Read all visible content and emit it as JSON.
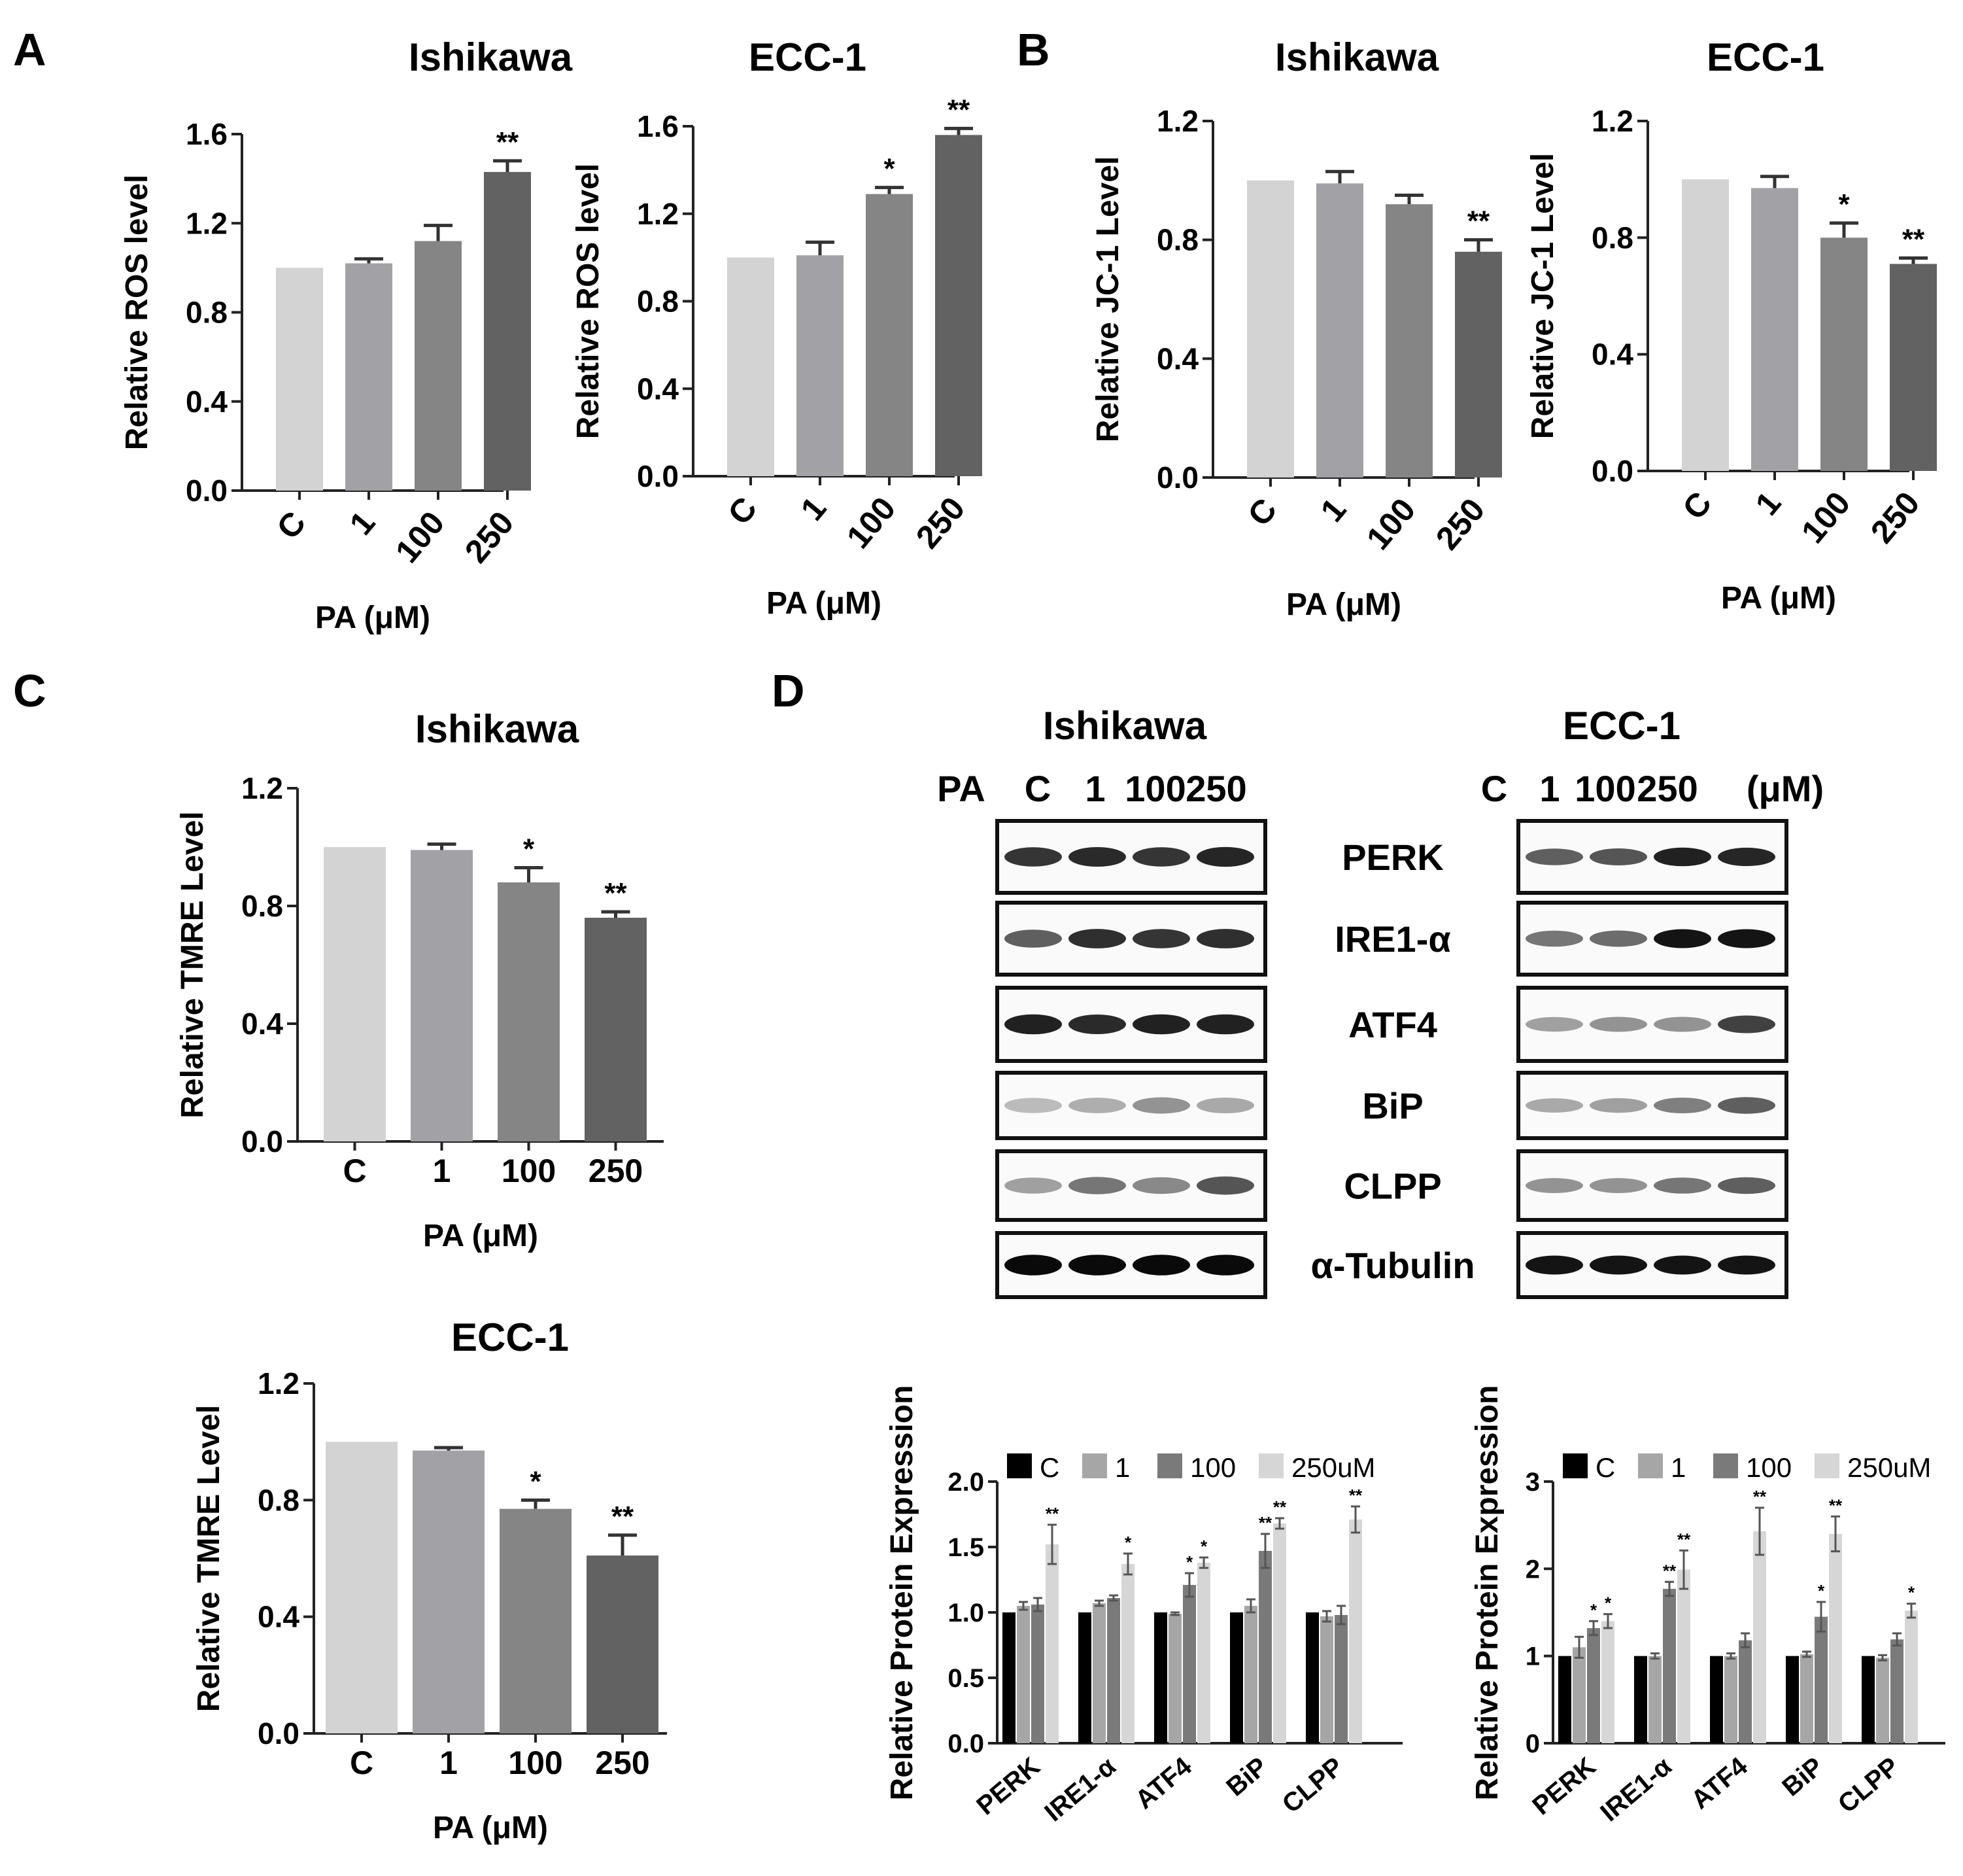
{
  "panels": {
    "A": "A",
    "B": "B",
    "C": "C",
    "D": "D"
  },
  "colors": {
    "bar": [
      "#d3d3d3",
      "#a2a2a6",
      "#858585",
      "#626262"
    ],
    "axis": "#222222",
    "grouped": [
      "#000000",
      "#a6a6a6",
      "#7a7a7a",
      "#d6d6d6"
    ]
  },
  "chart_data": [
    {
      "id": "A-ishikawa",
      "panel": "A",
      "type": "bar",
      "title": "Ishikawa",
      "categories": [
        "C",
        "1",
        "100",
        "250"
      ],
      "tick_labels": [
        "0.0",
        "0.4",
        "0.8",
        "1.2",
        "1.6"
      ],
      "values": [
        1.0,
        1.02,
        1.12,
        1.43
      ],
      "errors": [
        0.0,
        0.02,
        0.07,
        0.05
      ],
      "significance": [
        "",
        "",
        "",
        "**"
      ],
      "xlabel": "PA (μM)",
      "ylabel": "Relative ROS level",
      "ylim": [
        0,
        1.6
      ],
      "yticks": [
        0,
        0.4,
        0.8,
        1.2,
        1.6
      ]
    },
    {
      "id": "A-ecc1",
      "panel": "A",
      "type": "bar",
      "title": "ECC-1",
      "categories": [
        "C",
        "1",
        "100",
        "250"
      ],
      "tick_labels": [
        "0.0",
        "0.4",
        "0.8",
        "1.2",
        "1.6"
      ],
      "values": [
        1.0,
        1.01,
        1.29,
        1.56
      ],
      "errors": [
        0.0,
        0.06,
        0.03,
        0.03
      ],
      "significance": [
        "",
        "",
        "*",
        "**"
      ],
      "xlabel": "PA (μM)",
      "ylabel": "Relative ROS level",
      "ylim": [
        0,
        1.6
      ],
      "yticks": [
        0,
        0.4,
        0.8,
        1.2,
        1.6
      ]
    },
    {
      "id": "B-ishikawa",
      "panel": "B",
      "type": "bar",
      "title": "Ishikawa",
      "categories": [
        "C",
        "1",
        "100",
        "250"
      ],
      "tick_labels": [
        "0.0",
        "0.4",
        "0.8",
        "1.2"
      ],
      "values": [
        1.0,
        0.99,
        0.92,
        0.76
      ],
      "errors": [
        0.0,
        0.04,
        0.03,
        0.04
      ],
      "significance": [
        "",
        "",
        "",
        "**"
      ],
      "xlabel": "PA (μM)",
      "ylabel": "Relative JC-1 Level",
      "ylim": [
        0,
        1.2
      ],
      "yticks": [
        0,
        0.4,
        0.8,
        1.2
      ]
    },
    {
      "id": "B-ecc1",
      "panel": "B",
      "type": "bar",
      "title": "ECC-1",
      "categories": [
        "C",
        "1",
        "100",
        "250"
      ],
      "tick_labels": [
        "0.0",
        "0.4",
        "0.8",
        "1.2"
      ],
      "values": [
        1.0,
        0.97,
        0.8,
        0.71
      ],
      "errors": [
        0.0,
        0.04,
        0.05,
        0.02
      ],
      "significance": [
        "",
        "",
        "*",
        "**"
      ],
      "xlabel": "PA (μM)",
      "ylabel": "Relative JC-1 Level",
      "ylim": [
        0,
        1.2
      ],
      "yticks": [
        0,
        0.4,
        0.8,
        1.2
      ]
    },
    {
      "id": "C-ishikawa",
      "panel": "C",
      "type": "bar",
      "title": "Ishikawa",
      "categories": [
        "C",
        "1",
        "100",
        "250"
      ],
      "tick_labels": [
        "0.0",
        "0.4",
        "0.8",
        "1.2"
      ],
      "values": [
        1.0,
        0.99,
        0.88,
        0.76
      ],
      "errors": [
        0.0,
        0.02,
        0.05,
        0.02
      ],
      "significance": [
        "",
        "",
        "*",
        "**"
      ],
      "xlabel": "PA (μM)",
      "ylabel": "Relative TMRE Level",
      "ylim": [
        0,
        1.2
      ],
      "yticks": [
        0,
        0.4,
        0.8,
        1.2
      ]
    },
    {
      "id": "C-ecc1",
      "panel": "C",
      "type": "bar",
      "title": "ECC-1",
      "categories": [
        "C",
        "1",
        "100",
        "250"
      ],
      "tick_labels": [
        "0.0",
        "0.4",
        "0.8",
        "1.2"
      ],
      "values": [
        1.0,
        0.97,
        0.77,
        0.61
      ],
      "errors": [
        0.0,
        0.01,
        0.03,
        0.07
      ],
      "significance": [
        "",
        "",
        "*",
        "**"
      ],
      "xlabel": "PA (μM)",
      "ylabel": "Relative TMRE Level",
      "ylim": [
        0,
        1.2
      ],
      "yticks": [
        0,
        0.4,
        0.8,
        1.2
      ]
    },
    {
      "id": "D-ishikawa-quant",
      "panel": "D",
      "type": "bar",
      "categories": [
        "PERK",
        "IRE1-α",
        "ATF4",
        "BiP",
        "CLPP"
      ],
      "tick_labels": [
        "0.0",
        "0.5",
        "1.0",
        "1.5",
        "2.0"
      ],
      "series": [
        {
          "name": "C",
          "values": [
            1.0,
            1.0,
            1.0,
            1.0,
            1.0
          ],
          "errors": [
            0,
            0,
            0,
            0,
            0
          ],
          "significance": [
            "",
            "",
            "",
            "",
            ""
          ]
        },
        {
          "name": "1",
          "values": [
            1.05,
            1.07,
            0.99,
            1.05,
            0.97
          ],
          "errors": [
            0.03,
            0.02,
            0.01,
            0.05,
            0.04
          ],
          "significance": [
            "",
            "",
            "",
            "",
            ""
          ]
        },
        {
          "name": "100",
          "values": [
            1.06,
            1.11,
            1.21,
            1.47,
            0.98
          ],
          "errors": [
            0.05,
            0.02,
            0.09,
            0.13,
            0.07
          ],
          "significance": [
            "",
            "",
            "*",
            "**",
            ""
          ]
        },
        {
          "name": "250uM",
          "values": [
            1.52,
            1.37,
            1.38,
            1.68,
            1.71
          ],
          "errors": [
            0.15,
            0.08,
            0.04,
            0.04,
            0.1
          ],
          "significance": [
            "**",
            "*",
            "*",
            "**",
            "**"
          ]
        }
      ],
      "ylabel": "Relative Protein Expression",
      "ylim": [
        0,
        2.0
      ],
      "yticks": [
        0,
        0.5,
        1.0,
        1.5,
        2.0
      ]
    },
    {
      "id": "D-ecc1-quant",
      "panel": "D",
      "type": "bar",
      "categories": [
        "PERK",
        "IRE1-α",
        "ATF4",
        "BiP",
        "CLPP"
      ],
      "tick_labels": [
        "0",
        "1",
        "2",
        "3"
      ],
      "series": [
        {
          "name": "C",
          "values": [
            1.0,
            1.0,
            1.0,
            1.0,
            1.0
          ],
          "errors": [
            0,
            0,
            0,
            0,
            0
          ],
          "significance": [
            "",
            "",
            "",
            "",
            ""
          ]
        },
        {
          "name": "1",
          "values": [
            1.1,
            1.0,
            1.0,
            1.02,
            0.98
          ],
          "errors": [
            0.12,
            0.03,
            0.03,
            0.03,
            0.03
          ],
          "significance": [
            "",
            "",
            "",
            "",
            ""
          ]
        },
        {
          "name": "100",
          "values": [
            1.32,
            1.77,
            1.18,
            1.45,
            1.19
          ],
          "errors": [
            0.08,
            0.08,
            0.08,
            0.17,
            0.07
          ],
          "significance": [
            "*",
            "**",
            "",
            "*",
            ""
          ]
        },
        {
          "name": "250uM",
          "values": [
            1.4,
            1.99,
            2.43,
            2.4,
            1.52
          ],
          "errors": [
            0.08,
            0.22,
            0.27,
            0.2,
            0.08
          ],
          "significance": [
            "*",
            "**",
            "**",
            "**",
            "*"
          ]
        }
      ],
      "ylabel": "Relative Protein Expression",
      "ylim": [
        0,
        3
      ],
      "yticks": [
        0,
        1,
        2,
        3
      ]
    }
  ],
  "western_blot": {
    "titles": {
      "left": "Ishikawa",
      "right": "ECC-1"
    },
    "pa_label": "PA",
    "unit_label": "(μM)",
    "lanes": [
      "C",
      "1",
      "100",
      "250"
    ],
    "proteins": [
      "PERK",
      "IRE1-α",
      "ATF4",
      "BiP",
      "CLPP",
      "α-Tubulin"
    ],
    "band_intensity_left": [
      [
        0.75,
        0.8,
        0.75,
        0.82
      ],
      [
        0.55,
        0.78,
        0.75,
        0.78
      ],
      [
        0.85,
        0.8,
        0.85,
        0.85
      ],
      [
        0.12,
        0.18,
        0.3,
        0.2
      ],
      [
        0.25,
        0.45,
        0.35,
        0.6
      ],
      [
        0.95,
        0.95,
        0.95,
        0.95
      ]
    ],
    "band_intensity_right": [
      [
        0.55,
        0.6,
        0.85,
        0.82
      ],
      [
        0.45,
        0.5,
        0.9,
        0.9
      ],
      [
        0.25,
        0.3,
        0.3,
        0.7
      ],
      [
        0.2,
        0.25,
        0.4,
        0.55
      ],
      [
        0.3,
        0.3,
        0.45,
        0.55
      ],
      [
        0.9,
        0.9,
        0.9,
        0.9
      ]
    ]
  }
}
